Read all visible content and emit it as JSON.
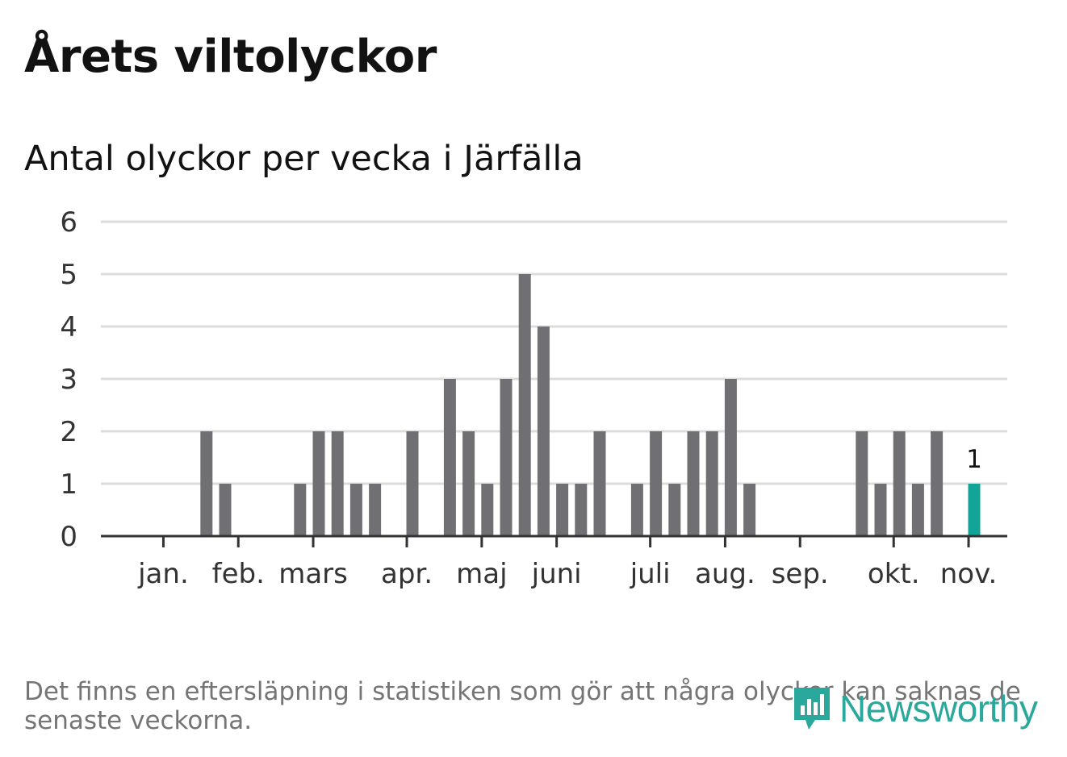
{
  "header": {
    "title": "Årets viltolyckor",
    "subtitle": "Antal olyckor per vecka i Järfälla"
  },
  "footer": {
    "note": "Det finns en eftersläpning i statistiken som gör att några olyckor kan saknas de senaste veckorna.",
    "brand": "Newsworthy"
  },
  "colors": {
    "bar": "#707074",
    "highlight": "#12a497",
    "grid": "#dcdcdc",
    "axis": "#333333",
    "brand": "#2aa89b"
  },
  "chart_data": {
    "type": "bar",
    "title": "Antal olyckor per vecka i Järfälla",
    "xlabel": "",
    "ylabel": "",
    "ylim": [
      0,
      6
    ],
    "yticks": [
      "0",
      "1",
      "2",
      "3",
      "4",
      "5",
      "6"
    ],
    "grid": true,
    "weeks": [
      1,
      2,
      3,
      4,
      5,
      6,
      7,
      8,
      9,
      10,
      11,
      12,
      13,
      14,
      15,
      16,
      17,
      18,
      19,
      20,
      21,
      22,
      23,
      24,
      25,
      26,
      27,
      28,
      29,
      30,
      31,
      32,
      33,
      34,
      35,
      36,
      37,
      38,
      39,
      40,
      41,
      42,
      43,
      44,
      45,
      46
    ],
    "values": [
      0,
      0,
      0,
      0,
      2,
      1,
      0,
      0,
      0,
      1,
      2,
      2,
      1,
      1,
      0,
      2,
      0,
      3,
      2,
      1,
      3,
      5,
      4,
      1,
      1,
      2,
      0,
      1,
      2,
      1,
      2,
      2,
      3,
      1,
      0,
      0,
      0,
      0,
      0,
      2,
      1,
      2,
      1,
      2,
      0,
      1
    ],
    "highlight_index": 45,
    "highlight_label": "1",
    "month_ticks": [
      {
        "label": "jan.",
        "week": 2.7
      },
      {
        "label": "feb.",
        "week": 6.7
      },
      {
        "label": "mars",
        "week": 10.7
      },
      {
        "label": "apr.",
        "week": 15.7
      },
      {
        "label": "maj",
        "week": 19.7
      },
      {
        "label": "juni",
        "week": 23.7
      },
      {
        "label": "juli",
        "week": 28.7
      },
      {
        "label": "aug.",
        "week": 32.7
      },
      {
        "label": "sep.",
        "week": 36.7
      },
      {
        "label": "okt.",
        "week": 41.7
      },
      {
        "label": "nov.",
        "week": 45.7
      }
    ]
  }
}
